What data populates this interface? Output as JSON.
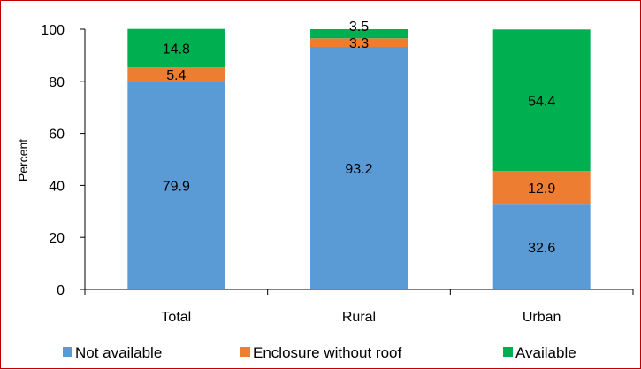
{
  "chart_data": {
    "type": "bar",
    "stacked": true,
    "title": "",
    "xlabel": "",
    "ylabel": "Percent",
    "ylim": [
      0,
      100
    ],
    "yticks": [
      0,
      20,
      40,
      60,
      80,
      100
    ],
    "categories": [
      "Total",
      "Rural",
      "Urban"
    ],
    "series": [
      {
        "name": "Not available",
        "values": [
          79.9,
          93.2,
          32.6
        ],
        "color": "#5b9bd5"
      },
      {
        "name": "Enclosure without roof",
        "values": [
          5.4,
          3.3,
          12.9
        ],
        "color": "#ed7d31"
      },
      {
        "name": "Available",
        "values": [
          14.8,
          3.5,
          54.4
        ],
        "color": "#00b050"
      }
    ],
    "grid": false,
    "legend_position": "bottom"
  }
}
